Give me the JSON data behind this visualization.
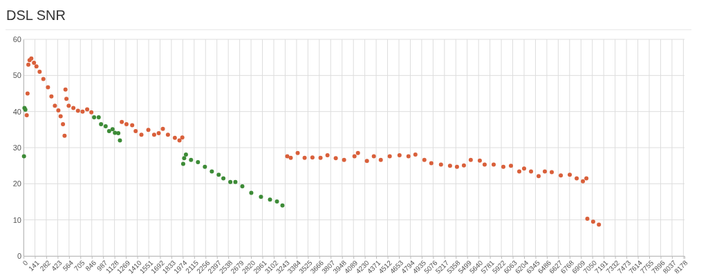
{
  "chart_data": {
    "type": "scatter",
    "title": "DSL SNR",
    "xlim": [
      0,
      8192
    ],
    "xticks": [
      0,
      141,
      282,
      423,
      564,
      705,
      846,
      987,
      1128,
      1269,
      1410,
      1551,
      1692,
      1833,
      1974,
      2115,
      2256,
      2397,
      2538,
      2679,
      2820,
      2961,
      3102,
      3243,
      3384,
      3525,
      3666,
      3807,
      3948,
      4089,
      4230,
      4371,
      4512,
      4653,
      4794,
      4935,
      5076,
      5217,
      5358,
      5499,
      5640,
      5781,
      5922,
      6063,
      6204,
      6345,
      6486,
      6627,
      6768,
      6909,
      7050,
      7191,
      7332,
      7473,
      7614,
      7755,
      7896,
      8037,
      8178
    ],
    "ylim": [
      0,
      60
    ],
    "yticks": [
      0,
      10,
      20,
      30,
      40,
      50,
      60
    ],
    "grid": true,
    "marker": "circle",
    "series": [
      {
        "color": "#d9603b",
        "x": [
          40,
          50,
          60,
          75,
          97,
          130,
          160,
          200,
          246,
          303,
          346,
          389,
          432,
          460,
          489,
          509,
          520,
          532,
          560,
          618,
          675,
          732,
          789,
          841,
          1218,
          1276,
          1347,
          1390,
          1461,
          1547,
          1619,
          1676,
          1727,
          1790,
          1876,
          1933,
          1968,
          3269,
          3312,
          3398,
          3484,
          3581,
          3681,
          3767,
          3870,
          3973,
          4102,
          4145,
          4256,
          4342,
          4428,
          4539,
          4660,
          4771,
          4857,
          4968,
          5054,
          5174,
          5286,
          5372,
          5458,
          5543,
          5655,
          5715,
          5827,
          5947,
          6041,
          6144,
          6204,
          6290,
          6384,
          6461,
          6547,
          6659,
          6770,
          6856,
          6933,
          6976,
          6988,
          7060,
          7131
        ],
        "values": [
          39,
          45,
          53,
          54.2,
          54.7,
          53.5,
          52.5,
          51,
          49,
          46.7,
          44.2,
          41.6,
          40.3,
          38.7,
          36.5,
          33.3,
          46.1,
          43.5,
          41.6,
          41,
          40.2,
          40,
          40.6,
          39.8,
          37.1,
          36.5,
          36.2,
          34.6,
          33.6,
          34.9,
          33.6,
          34,
          35.2,
          33.6,
          32.7,
          32,
          32.8,
          27.6,
          27.2,
          28.5,
          27.2,
          27.3,
          27.2,
          27.9,
          27.1,
          26.6,
          27.6,
          28.5,
          26.3,
          27.6,
          26.6,
          27.6,
          27.9,
          27.6,
          28.1,
          26.6,
          25.7,
          25.3,
          25,
          24.7,
          25.1,
          26.6,
          26.4,
          25.3,
          25.3,
          24.7,
          25,
          23.4,
          24.2,
          23.4,
          22.1,
          23.4,
          23.2,
          22.3,
          22.5,
          21.5,
          20.7,
          21.5,
          10.3,
          9.5,
          8.7
        ]
      },
      {
        "color": "#3d8b37",
        "x": [
          6,
          12,
          23,
          875,
          932,
          961,
          1018,
          1061,
          1104,
          1133,
          1175,
          1195,
          1979,
          1991,
          2013,
          2076,
          2162,
          2248,
          2334,
          2419,
          2477,
          2563,
          2626,
          2712,
          2823,
          2943,
          3055,
          3141,
          3209
        ],
        "values": [
          27.6,
          41,
          40.5,
          38.4,
          38.4,
          36.5,
          35.9,
          34.6,
          35.1,
          34.1,
          34,
          32,
          25.5,
          27.1,
          28.1,
          26.6,
          26,
          24.7,
          23.4,
          22.5,
          21.5,
          20.5,
          20.5,
          19.3,
          17.5,
          16.4,
          15.6,
          15.1,
          14
        ]
      }
    ]
  }
}
